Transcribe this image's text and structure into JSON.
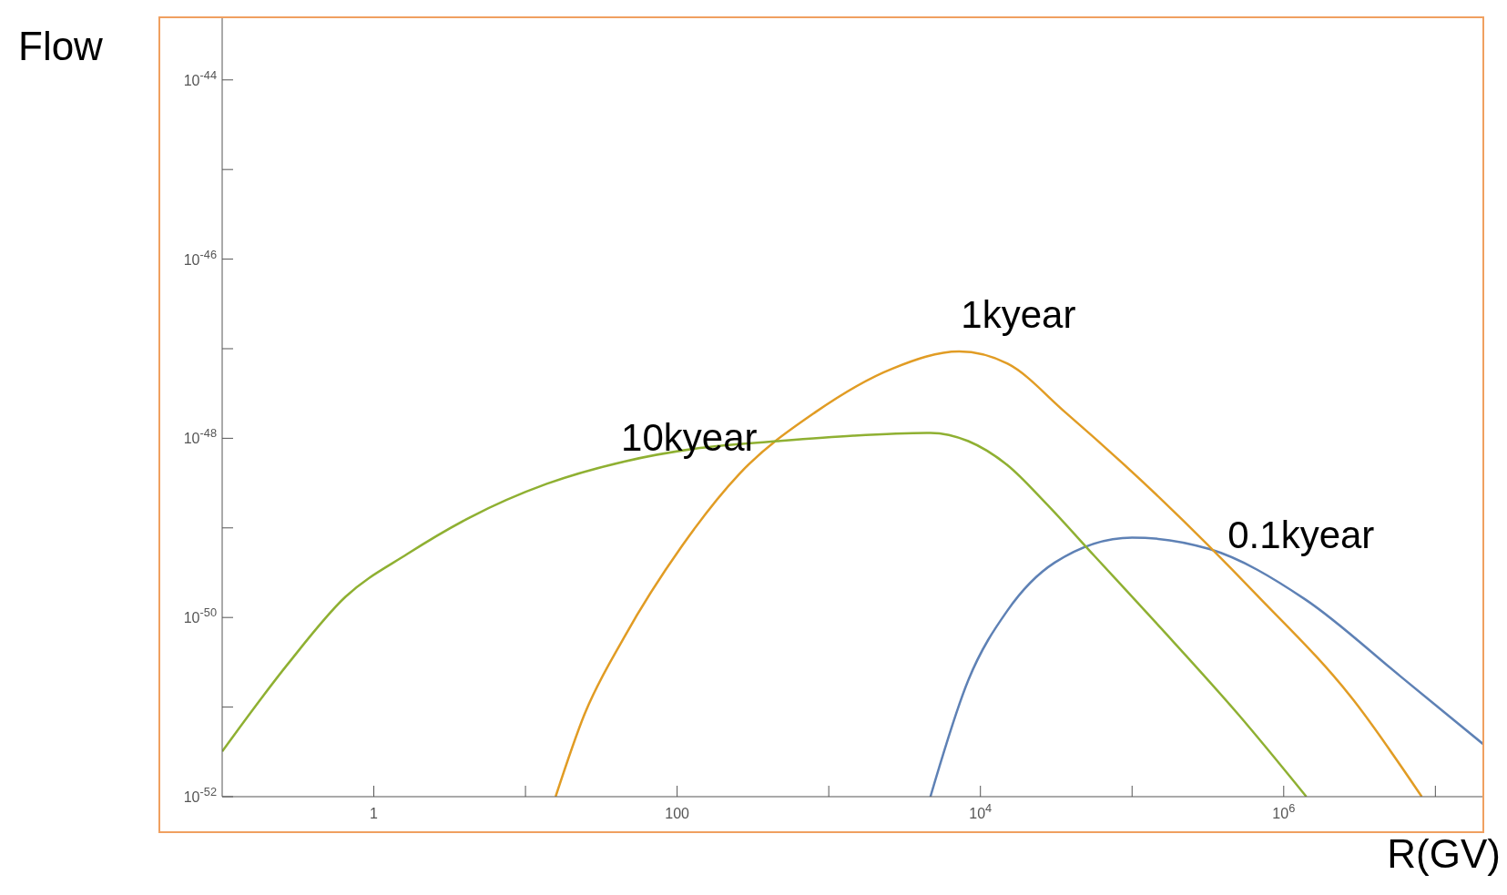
{
  "chart_data": {
    "type": "line",
    "xlabel": "R(GV)",
    "ylabel": "Flow",
    "log": "xy",
    "grid": false,
    "legend": false,
    "marker": "none",
    "line_style": "solid",
    "xlim": [
      0.1,
      21000000
    ],
    "ylim": [
      1e-52,
      5e-44
    ],
    "xticks": [
      {
        "value": 1,
        "label": "1"
      },
      {
        "value": 10,
        "label": null
      },
      {
        "value": 100,
        "label": "100"
      },
      {
        "value": 1000,
        "label": null
      },
      {
        "value": 10000,
        "label": "10$^{4}$"
      },
      {
        "value": 100000,
        "label": null
      },
      {
        "value": 1000000,
        "label": "10$^{6}$"
      },
      {
        "value": 10000000,
        "label": null
      }
    ],
    "yticks": [
      {
        "value": 1e-52,
        "label": "10$^{-52}$"
      },
      {
        "value": 1e-51,
        "label": null
      },
      {
        "value": 1e-50,
        "label": "10$^{-50}$"
      },
      {
        "value": 1e-49,
        "label": null
      },
      {
        "value": 1e-48,
        "label": "10$^{-48}$"
      },
      {
        "value": 1e-47,
        "label": null
      },
      {
        "value": 1e-46,
        "label": "10$^{-46}$"
      },
      {
        "value": 1e-45,
        "label": null
      },
      {
        "value": 1e-44,
        "label": "10$^{-44}$"
      }
    ],
    "series": [
      {
        "name": "0.1kyear",
        "color": "#5e81b5",
        "x": [
          4680,
          8320,
          15100,
          30900,
          100000,
          324000,
          1380000,
          5890000,
          20900000
        ],
        "values": [
          1e-52,
          2e-51,
          1.2e-50,
          4.1e-50,
          7.8e-50,
          5.8e-50,
          1.6e-50,
          2.2e-51,
          3.8e-52
        ]
      },
      {
        "name": "1kyear",
        "color": "#e19c24",
        "x": [
          15.8,
          24.5,
          44.7,
          107,
          257,
          813,
          2630,
          7240,
          15100,
          36300,
          155000,
          661000,
          2880000,
          8130000
        ],
        "values": [
          1e-52,
          8.3e-52,
          6e-51,
          6.2e-50,
          4e-49,
          1.95e-48,
          6e-48,
          9.3e-48,
          6.8e-48,
          1.95e-48,
          2.1e-49,
          1.8e-50,
          1.2e-51,
          1e-52
        ]
      },
      {
        "name": "10kyear",
        "color": "#8fb032",
        "x": [
          0.1,
          0.27,
          0.65,
          1.66,
          4.27,
          13.8,
          44.7,
          141,
          457,
          1450,
          4680,
          8320,
          15100,
          26900,
          56200,
          155000,
          501000,
          1410000
        ],
        "values": [
          3.2e-52,
          3e-51,
          1.7e-50,
          5.1e-50,
          1.3e-49,
          3.1e-49,
          5.5e-49,
          7.8e-49,
          9.3e-49,
          1.07e-48,
          1.15e-48,
          9.3e-49,
          5e-49,
          1.9e-49,
          4.9e-50,
          7.6e-51,
          8.3e-52,
          1e-52
        ]
      }
    ]
  }
}
